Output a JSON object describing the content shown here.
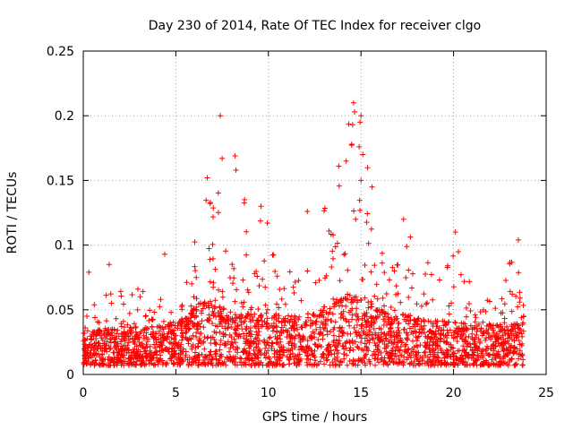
{
  "chart_data": {
    "type": "scatter",
    "title": "Day 230 of 2014, Rate Of TEC Index for receiver clgo",
    "xlabel": "GPS time / hours",
    "ylabel": "ROTI / TECUs",
    "xlim": [
      0,
      25
    ],
    "ylim": [
      0,
      0.25
    ],
    "x_ticks": [
      0,
      5,
      10,
      15,
      20,
      25
    ],
    "y_ticks": [
      0,
      0.05,
      0.1,
      0.15,
      0.2,
      0.25
    ],
    "x_tick_labels": [
      "0",
      "5",
      "10",
      "15",
      "20",
      "25"
    ],
    "y_tick_labels": [
      "0",
      "0.05",
      "0.1",
      "0.15",
      "0.2",
      "0.25"
    ],
    "grid": true,
    "marker": "+",
    "series": [
      {
        "name": "ROTI",
        "color": "#ff0000",
        "envelope": {
          "x": [
            0.0,
            0.5,
            1.0,
            1.5,
            2.0,
            2.5,
            3.0,
            3.5,
            4.0,
            4.5,
            5.0,
            5.5,
            6.0,
            6.5,
            7.0,
            7.5,
            8.0,
            8.5,
            9.0,
            9.5,
            10.0,
            10.5,
            11.0,
            11.5,
            12.0,
            12.5,
            13.0,
            13.5,
            14.0,
            14.5,
            15.0,
            15.5,
            16.0,
            16.5,
            17.0,
            17.5,
            18.0,
            18.5,
            19.0,
            19.5,
            20.0,
            20.5,
            21.0,
            21.5,
            22.0,
            22.5,
            23.0,
            23.5,
            23.8
          ],
          "max": [
            0.052,
            0.079,
            0.048,
            0.085,
            0.065,
            0.075,
            0.07,
            0.06,
            0.055,
            0.093,
            0.06,
            0.07,
            0.1,
            0.152,
            0.13,
            0.2,
            0.1,
            0.169,
            0.09,
            0.13,
            0.125,
            0.08,
            0.09,
            0.075,
            0.126,
            0.09,
            0.13,
            0.13,
            0.17,
            0.21,
            0.2,
            0.15,
            0.11,
            0.09,
            0.085,
            0.12,
            0.08,
            0.09,
            0.08,
            0.07,
            0.11,
            0.09,
            0.07,
            0.065,
            0.06,
            0.06,
            0.09,
            0.104,
            0.066
          ],
          "base": [
            0.02,
            0.018,
            0.017,
            0.02,
            0.02,
            0.02,
            0.02,
            0.02,
            0.02,
            0.022,
            0.025,
            0.028,
            0.035,
            0.04,
            0.04,
            0.035,
            0.032,
            0.03,
            0.03,
            0.03,
            0.03,
            0.03,
            0.03,
            0.028,
            0.03,
            0.03,
            0.035,
            0.04,
            0.045,
            0.045,
            0.045,
            0.04,
            0.035,
            0.03,
            0.03,
            0.03,
            0.028,
            0.026,
            0.025,
            0.025,
            0.025,
            0.025,
            0.024,
            0.023,
            0.022,
            0.022,
            0.022,
            0.023,
            0.023
          ]
        },
        "highlights": [
          {
            "x": 7.4,
            "y": 0.2
          },
          {
            "x": 7.5,
            "y": 0.167
          },
          {
            "x": 6.7,
            "y": 0.152
          },
          {
            "x": 8.2,
            "y": 0.169
          },
          {
            "x": 8.25,
            "y": 0.158
          },
          {
            "x": 14.6,
            "y": 0.21
          },
          {
            "x": 14.65,
            "y": 0.203
          },
          {
            "x": 14.55,
            "y": 0.193
          },
          {
            "x": 15.0,
            "y": 0.2
          },
          {
            "x": 14.95,
            "y": 0.195
          },
          {
            "x": 14.9,
            "y": 0.176
          },
          {
            "x": 15.1,
            "y": 0.17
          },
          {
            "x": 14.5,
            "y": 0.178
          },
          {
            "x": 14.2,
            "y": 0.165
          },
          {
            "x": 13.8,
            "y": 0.161
          },
          {
            "x": 15.0,
            "y": 0.15
          },
          {
            "x": 15.6,
            "y": 0.145
          },
          {
            "x": 9.6,
            "y": 0.13
          },
          {
            "x": 12.1,
            "y": 0.126
          },
          {
            "x": 17.3,
            "y": 0.12
          },
          {
            "x": 20.1,
            "y": 0.11
          },
          {
            "x": 23.5,
            "y": 0.104
          },
          {
            "x": 4.4,
            "y": 0.093
          },
          {
            "x": 1.4,
            "y": 0.085
          },
          {
            "x": 0.3,
            "y": 0.079
          }
        ]
      }
    ]
  }
}
